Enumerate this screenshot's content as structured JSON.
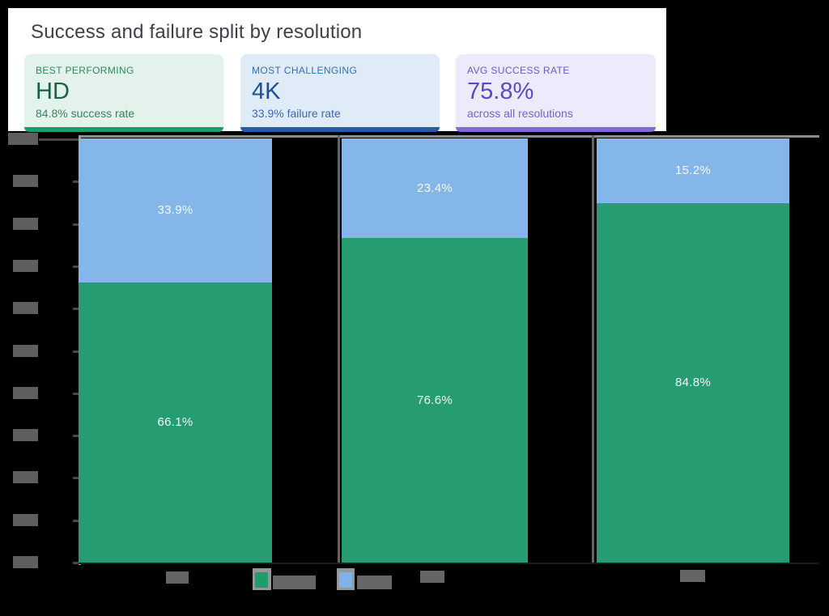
{
  "page": {
    "background": "#000000",
    "panel_background": "#ffffff"
  },
  "title": "Success and failure split by resolution",
  "summary_cards": [
    {
      "label": "BEST PERFORMING",
      "value": "HD",
      "subtitle": "84.8% success rate",
      "theme": {
        "bg": "#e3f2ea",
        "label": "#2e8a63",
        "value": "#17604a",
        "subtitle": "#3b8163",
        "accent": "#1b9e6c"
      }
    },
    {
      "label": "MOST CHALLENGING",
      "value": "4K",
      "subtitle": "33.9% failure rate",
      "theme": {
        "bg": "#dfecf8",
        "label": "#2f6fb5",
        "value": "#1b4f9e",
        "subtitle": "#3e68ae",
        "accent": "#2d59ac"
      }
    },
    {
      "label": "AVG SUCCESS RATE",
      "value": "75.8%",
      "subtitle": "across all resolutions",
      "theme": {
        "bg": "#eceafb",
        "label": "#6a59ce",
        "value": "#5a49c6",
        "subtitle": "#7764d1",
        "accent": "#8268d8"
      }
    }
  ],
  "chart_data": {
    "type": "bar",
    "stacked": true,
    "orientation": "vertical",
    "ylim": [
      0,
      100
    ],
    "y_ticks_percent": [
      100,
      90,
      80,
      70,
      60,
      50,
      40,
      30,
      20,
      10,
      0
    ],
    "axis_tick_labels_obscured": true,
    "legend_text_obscured": true,
    "categories": [
      "",
      "",
      ""
    ],
    "categories_note": "x-axis labels covered by gray blocks; summary cards imply left bar is 4K and right bar is HD",
    "series": [
      {
        "name": "Success",
        "color": "#259d71",
        "values": [
          66.1,
          76.6,
          84.8
        ]
      },
      {
        "name": "Failure",
        "color": "#85b6e9",
        "values": [
          33.9,
          23.4,
          15.2
        ]
      }
    ],
    "bar_value_labels": {
      "failure": [
        "33.9%",
        "23.4%",
        "15.2%"
      ],
      "success": [
        "66.1%",
        "76.6%",
        "84.8%"
      ]
    },
    "legend": [
      {
        "swatch_color": "#1f9c6a",
        "label_obscured": true
      },
      {
        "swatch_color": "#7fb2e8",
        "label_obscured": true
      }
    ],
    "value_label_color": "#f4f8f6"
  }
}
